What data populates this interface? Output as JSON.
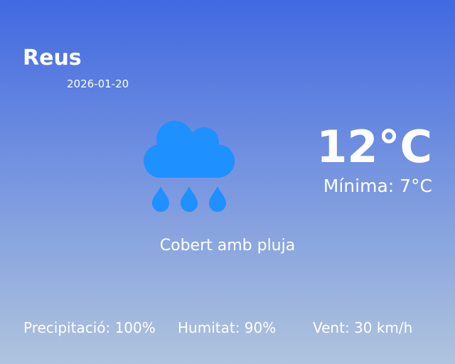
{
  "location": {
    "city": "Reus",
    "date": "2026-01-20"
  },
  "current": {
    "temperature": "12°C",
    "minimum": "Mínima: 7°C",
    "condition": "Cobert amb pluja",
    "icon": "cloud-rain-icon"
  },
  "stats": {
    "precipitation": "Precipitació: 100%",
    "humidity": "Humitat: 90%",
    "wind": "Vent: 30 km/h"
  },
  "colors": {
    "gradient_top": "#4169e1",
    "gradient_bottom": "#b0c4de",
    "icon": "#1e90ff",
    "text": "#ffffff"
  }
}
